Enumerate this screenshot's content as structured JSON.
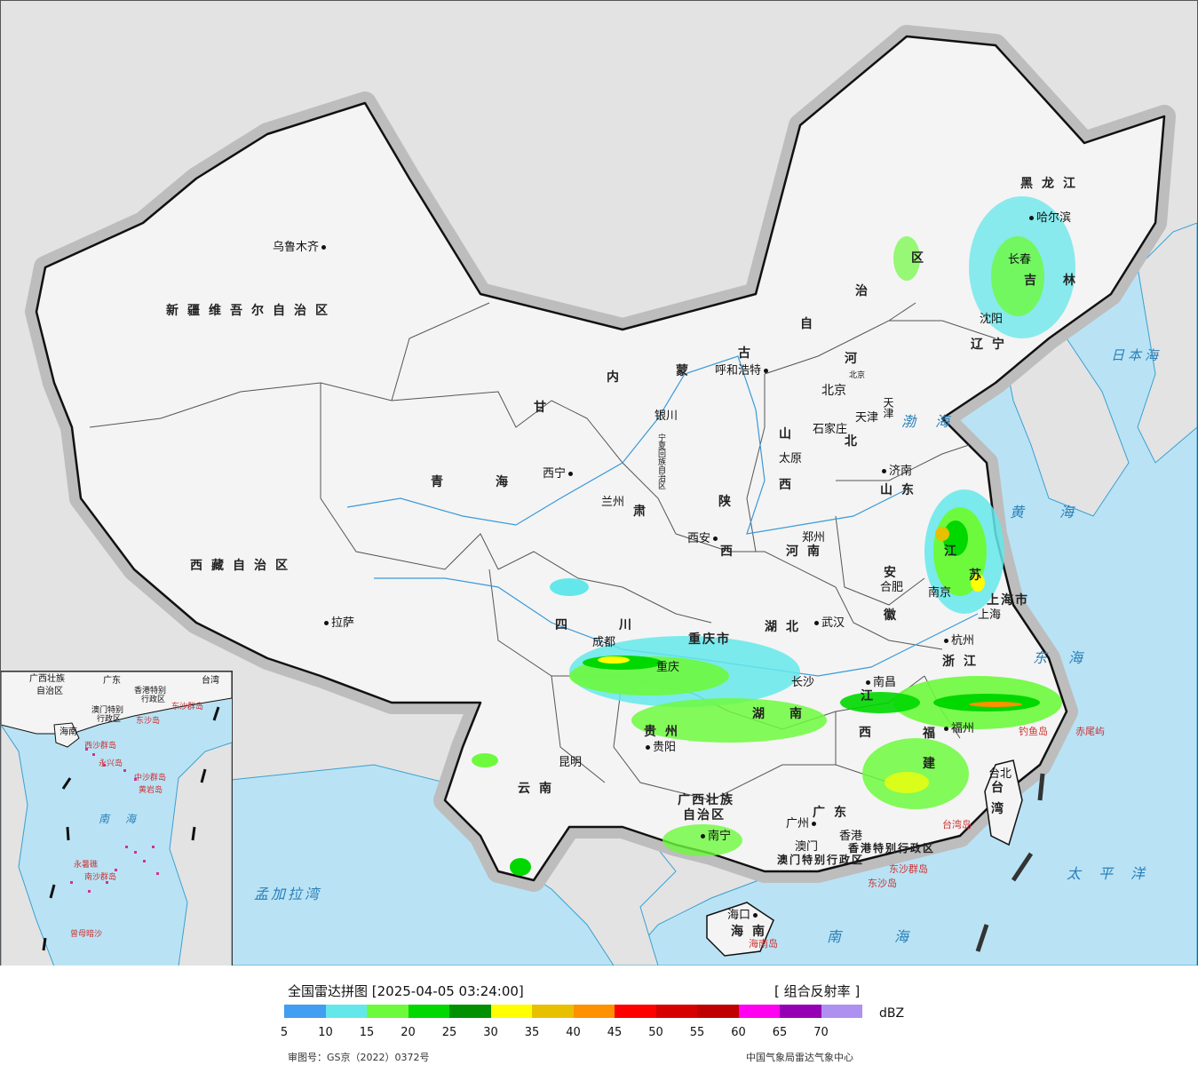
{
  "map": {
    "provinces": [
      {
        "id": "xinjiang",
        "text": "新疆维吾尔自治区"
      },
      {
        "id": "xizang",
        "text": "西藏自治区"
      },
      {
        "id": "qinghai-1",
        "text": "青"
      },
      {
        "id": "qinghai-2",
        "text": "海"
      },
      {
        "id": "gansu",
        "text": "甘"
      },
      {
        "id": "gansu-2",
        "text": "肃"
      },
      {
        "id": "neimenggu-1",
        "text": "内"
      },
      {
        "id": "neimenggu-2",
        "text": "蒙"
      },
      {
        "id": "neimenggu-3",
        "text": "古"
      },
      {
        "id": "neimenggu-4",
        "text": "自"
      },
      {
        "id": "neimenggu-5",
        "text": "治"
      },
      {
        "id": "neimenggu-6",
        "text": "区"
      },
      {
        "id": "heilongjiang",
        "text": "黑龙江"
      },
      {
        "id": "jilin-1",
        "text": "吉"
      },
      {
        "id": "jilin-2",
        "text": "林"
      },
      {
        "id": "liaoning",
        "text": "辽宁"
      },
      {
        "id": "hebei-1",
        "text": "河"
      },
      {
        "id": "hebei-2",
        "text": "北"
      },
      {
        "id": "shanxi-1",
        "text": "山"
      },
      {
        "id": "shanxi-2",
        "text": "西"
      },
      {
        "id": "shandong",
        "text": "山东"
      },
      {
        "id": "henan",
        "text": "河南"
      },
      {
        "id": "shaanxi-1",
        "text": "陕"
      },
      {
        "id": "shaanxi-2",
        "text": "西"
      },
      {
        "id": "sichuan-1",
        "text": "四"
      },
      {
        "id": "sichuan-2",
        "text": "川"
      },
      {
        "id": "chongqing",
        "text": "重庆市"
      },
      {
        "id": "hubei",
        "text": "湖北"
      },
      {
        "id": "hunan-1",
        "text": "湖"
      },
      {
        "id": "hunan-2",
        "text": "南"
      },
      {
        "id": "anhui-1",
        "text": "安"
      },
      {
        "id": "anhui-2",
        "text": "徽"
      },
      {
        "id": "jiangsu-1",
        "text": "江"
      },
      {
        "id": "jiangsu-2",
        "text": "苏"
      },
      {
        "id": "shanghai",
        "text": "上海市"
      },
      {
        "id": "zhejiang",
        "text": "浙江"
      },
      {
        "id": "jiangxi-1",
        "text": "江"
      },
      {
        "id": "jiangxi-2",
        "text": "西"
      },
      {
        "id": "fujian-1",
        "text": "福"
      },
      {
        "id": "fujian-2",
        "text": "建"
      },
      {
        "id": "guizhou",
        "text": "贵州"
      },
      {
        "id": "yunnan",
        "text": "云南"
      },
      {
        "id": "guangxi-1",
        "text": "广西壮族"
      },
      {
        "id": "guangxi-2",
        "text": "自治区"
      },
      {
        "id": "guangdong",
        "text": "广东"
      },
      {
        "id": "hainan",
        "text": "海南"
      },
      {
        "id": "taiwan-1",
        "text": "台"
      },
      {
        "id": "taiwan-2",
        "text": "湾"
      },
      {
        "id": "ningxia",
        "text": "宁夏回族自治区"
      },
      {
        "id": "hongkong",
        "text": "香港特别行政区"
      },
      {
        "id": "macao",
        "text": "澳门特别行政区"
      },
      {
        "id": "tianjin",
        "text": "天津"
      },
      {
        "id": "beijing",
        "text": "北京"
      }
    ],
    "cities": [
      {
        "id": "urumqi",
        "text": "乌鲁木齐"
      },
      {
        "id": "lhasa",
        "text": "拉萨"
      },
      {
        "id": "xining",
        "text": "西宁"
      },
      {
        "id": "lanzhou",
        "text": "兰州"
      },
      {
        "id": "yinchuan",
        "text": "银川"
      },
      {
        "id": "hohhot",
        "text": "呼和浩特"
      },
      {
        "id": "harbin",
        "text": "哈尔滨"
      },
      {
        "id": "changchun",
        "text": "长春"
      },
      {
        "id": "shenyang",
        "text": "沈阳"
      },
      {
        "id": "beijing-city",
        "text": "北京"
      },
      {
        "id": "tianjin-city",
        "text": "天津"
      },
      {
        "id": "shijiazhuang",
        "text": "石家庄"
      },
      {
        "id": "taiyuan",
        "text": "太原"
      },
      {
        "id": "jinan",
        "text": "济南"
      },
      {
        "id": "zhengzhou",
        "text": "郑州"
      },
      {
        "id": "xian",
        "text": "西安"
      },
      {
        "id": "chengdu",
        "text": "成都"
      },
      {
        "id": "chongqing-city",
        "text": "重庆"
      },
      {
        "id": "wuhan",
        "text": "武汉"
      },
      {
        "id": "hefei",
        "text": "合肥"
      },
      {
        "id": "nanjing",
        "text": "南京"
      },
      {
        "id": "shanghai-city",
        "text": "上海"
      },
      {
        "id": "hangzhou",
        "text": "杭州"
      },
      {
        "id": "nanchang",
        "text": "南昌"
      },
      {
        "id": "changsha",
        "text": "长沙"
      },
      {
        "id": "fuzhou",
        "text": "福州"
      },
      {
        "id": "guiyang",
        "text": "贵阳"
      },
      {
        "id": "kunming",
        "text": "昆明"
      },
      {
        "id": "nanning",
        "text": "南宁"
      },
      {
        "id": "guangzhou",
        "text": "广州"
      },
      {
        "id": "hongkong-city",
        "text": "香港"
      },
      {
        "id": "macao-city",
        "text": "澳门"
      },
      {
        "id": "haikou",
        "text": "海口"
      },
      {
        "id": "taipei",
        "text": "台北"
      }
    ],
    "seas": [
      {
        "id": "japan-sea",
        "text": "日本海"
      },
      {
        "id": "bohai",
        "text": "渤海"
      },
      {
        "id": "huanghai",
        "text": "黄海"
      },
      {
        "id": "donghai",
        "text": "东海"
      },
      {
        "id": "taiping",
        "text": "太平洋"
      },
      {
        "id": "nanhai",
        "text": "南海"
      },
      {
        "id": "mengjiala",
        "text": "孟加拉湾"
      }
    ],
    "islands": [
      {
        "id": "diaoyu",
        "text": "钓鱼岛"
      },
      {
        "id": "chiwei",
        "text": "赤尾屿"
      },
      {
        "id": "taiwan-island",
        "text": "台湾岛"
      },
      {
        "id": "dongsha",
        "text": "东沙群岛"
      },
      {
        "id": "dongsha-2",
        "text": "东沙岛"
      },
      {
        "id": "hainan-island",
        "text": "海南岛"
      }
    ],
    "inset_labels": [
      {
        "id": "inset-guangxi",
        "text": "广西壮族"
      },
      {
        "id": "inset-zzq",
        "text": "自治区"
      },
      {
        "id": "inset-guangdong",
        "text": "广东"
      },
      {
        "id": "inset-taiwan",
        "text": "台湾"
      },
      {
        "id": "inset-hk",
        "text": "香港特别"
      },
      {
        "id": "inset-hk2",
        "text": "行政区"
      },
      {
        "id": "inset-macao",
        "text": "澳门特别"
      },
      {
        "id": "inset-macao2",
        "text": "行政区"
      },
      {
        "id": "inset-dongsha",
        "text": "东沙群岛"
      },
      {
        "id": "inset-dongsha2",
        "text": "东沙岛"
      },
      {
        "id": "inset-hainan",
        "text": "海南"
      },
      {
        "id": "inset-xisha",
        "text": "西沙群岛"
      },
      {
        "id": "inset-yongxing",
        "text": "永兴岛"
      },
      {
        "id": "inset-zhongsha",
        "text": "中沙群岛"
      },
      {
        "id": "inset-huangyan",
        "text": "黄岩岛"
      },
      {
        "id": "inset-nanhai",
        "text": "南海"
      },
      {
        "id": "inset-yongshu",
        "text": "永暑礁"
      },
      {
        "id": "inset-nansha",
        "text": "南沙群岛"
      },
      {
        "id": "inset-zengmu",
        "text": "曾母暗沙"
      }
    ]
  },
  "legend": {
    "title": "全国雷达拼图 [2025-04-05 03:24:00]",
    "product": "[ 组合反射率 ]",
    "unit": "dBZ",
    "approval": "审图号：GS京（2022）0372号",
    "source": "中国气象局雷达气象中心",
    "colors": [
      "#419ef0",
      "#64e7eb",
      "#6dfa3d",
      "#00d800",
      "#019000",
      "#ffff00",
      "#e7c000",
      "#ff9000",
      "#ff0000",
      "#d60000",
      "#c00000",
      "#ff00f0",
      "#9600b4",
      "#ad90f0"
    ],
    "ticks": [
      "5",
      "10",
      "15",
      "20",
      "25",
      "30",
      "35",
      "40",
      "45",
      "50",
      "55",
      "60",
      "65",
      "70"
    ]
  }
}
